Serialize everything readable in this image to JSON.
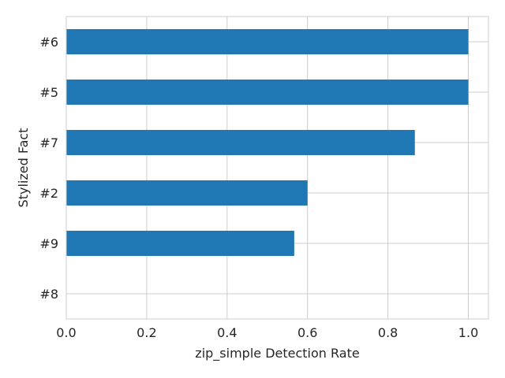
{
  "chart_data": {
    "type": "bar",
    "orientation": "horizontal",
    "categories": [
      "#6",
      "#5",
      "#7",
      "#2",
      "#9",
      "#8"
    ],
    "values": [
      1.0,
      1.0,
      0.867,
      0.6,
      0.567,
      0.0
    ],
    "xlabel": "zip_simple Detection Rate",
    "ylabel": "Stylized Fact",
    "xlim": [
      0.0,
      1.05
    ],
    "xticks": [
      0.0,
      0.2,
      0.4,
      0.6,
      0.8,
      1.0
    ],
    "xtick_labels": [
      "0.0",
      "0.2",
      "0.4",
      "0.6",
      "0.8",
      "1.0"
    ],
    "grid": true,
    "bar_color": "#1f77b4"
  }
}
